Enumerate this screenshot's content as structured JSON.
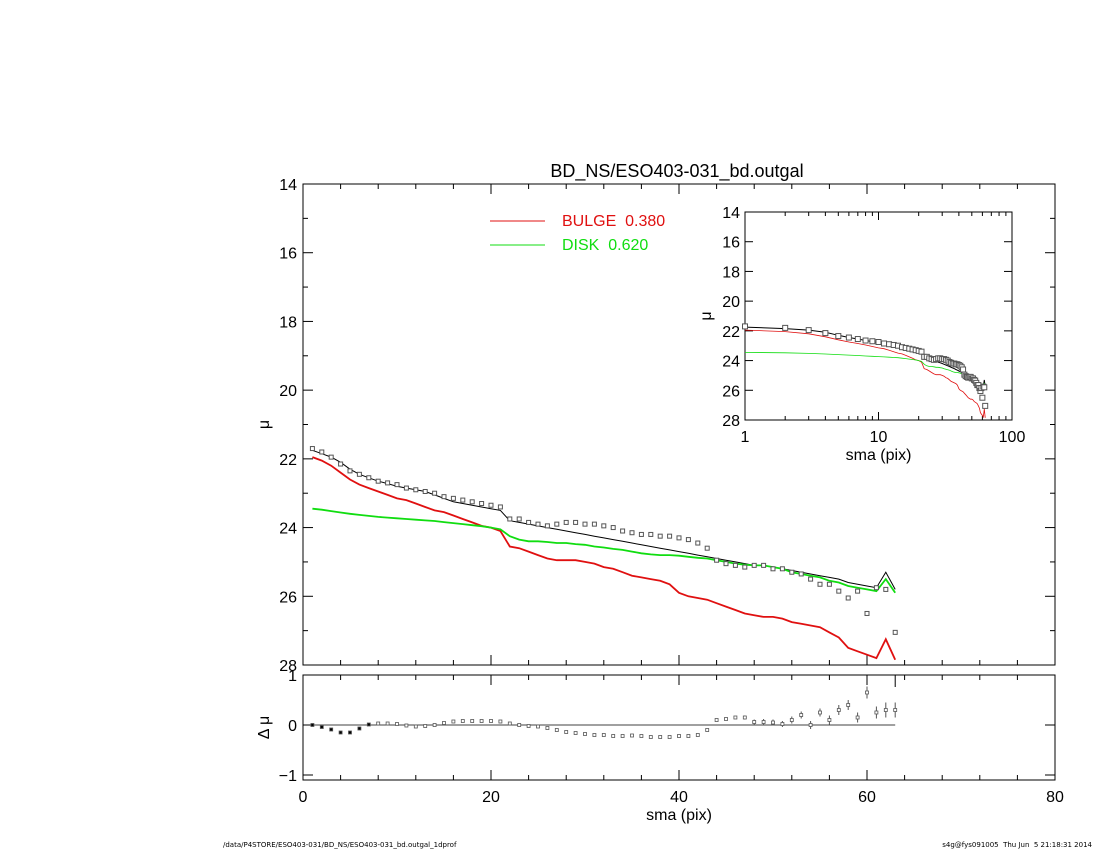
{
  "title": "BD_NS/ESO403-031_bd.outgal",
  "footer": {
    "left": "/data/P4STORE/ESO403-031/BD_NS/ESO403-031_bd.outgal_1dprof",
    "right": "s4g@fys091005  Thu Jun  5 21:18:31 2014"
  },
  "colors": {
    "bulge": "#e01010",
    "disk": "#10dd10",
    "model": "#000000",
    "data": "#555555"
  },
  "chart_data": [
    {
      "id": "main",
      "type": "line",
      "title": "BD_NS/ESO403-031_bd.outgal",
      "xlabel": "",
      "ylabel": "μ",
      "xlim": [
        0,
        80
      ],
      "ylim": [
        28,
        14
      ],
      "yticks": [
        14,
        16,
        18,
        20,
        22,
        24,
        26,
        28
      ],
      "legend": {
        "placement": "top-center",
        "entries": [
          {
            "label": "BULGE  0.380",
            "series": "bulge"
          },
          {
            "label": "DISK  0.620",
            "series": "disk"
          }
        ]
      },
      "series": [
        {
          "key": "bulge",
          "x": [
            1,
            2,
            3,
            4,
            5,
            6,
            7,
            8,
            9,
            10,
            11,
            12,
            13,
            14,
            15,
            16,
            17,
            18,
            19,
            20,
            21,
            22,
            23,
            24,
            25,
            26,
            27,
            28,
            29,
            30,
            31,
            32,
            33,
            34,
            35,
            36,
            37,
            38,
            39,
            40,
            41,
            42,
            43,
            44,
            45,
            46,
            47,
            48,
            49,
            50,
            51,
            52,
            53,
            54,
            55,
            56,
            57,
            58,
            59,
            60,
            61,
            62,
            63
          ],
          "y": [
            21.95,
            22.05,
            22.2,
            22.4,
            22.6,
            22.75,
            22.85,
            22.95,
            23.05,
            23.15,
            23.2,
            23.3,
            23.4,
            23.5,
            23.55,
            23.65,
            23.75,
            23.85,
            23.95,
            24.0,
            24.1,
            24.55,
            24.6,
            24.7,
            24.8,
            24.9,
            24.95,
            24.95,
            24.95,
            25.0,
            25.05,
            25.15,
            25.2,
            25.3,
            25.4,
            25.45,
            25.5,
            25.55,
            25.65,
            25.9,
            26.0,
            26.05,
            26.1,
            26.2,
            26.3,
            26.4,
            26.5,
            26.55,
            26.6,
            26.6,
            26.65,
            26.75,
            26.8,
            26.85,
            26.9,
            27.05,
            27.2,
            27.5,
            27.6,
            27.7,
            27.8,
            27.25,
            27.85
          ]
        },
        {
          "key": "disk",
          "x": [
            1,
            2,
            3,
            4,
            5,
            6,
            7,
            8,
            9,
            10,
            11,
            12,
            13,
            14,
            15,
            16,
            17,
            18,
            19,
            20,
            21,
            22,
            23,
            24,
            25,
            26,
            27,
            28,
            29,
            30,
            31,
            32,
            33,
            34,
            35,
            36,
            37,
            38,
            39,
            40,
            41,
            42,
            43,
            44,
            45,
            46,
            47,
            48,
            49,
            50,
            51,
            52,
            53,
            54,
            55,
            56,
            57,
            58,
            59,
            60,
            61,
            62,
            63
          ],
          "y": [
            23.45,
            23.48,
            23.52,
            23.56,
            23.6,
            23.63,
            23.66,
            23.69,
            23.71,
            23.73,
            23.75,
            23.77,
            23.79,
            23.81,
            23.84,
            23.87,
            23.9,
            23.93,
            23.96,
            24.0,
            24.05,
            24.25,
            24.35,
            24.4,
            24.4,
            24.42,
            24.45,
            24.45,
            24.48,
            24.5,
            24.55,
            24.58,
            24.62,
            24.65,
            24.7,
            24.75,
            24.78,
            24.8,
            24.8,
            24.82,
            24.85,
            24.88,
            24.9,
            24.95,
            25.0,
            25.05,
            25.08,
            25.1,
            25.1,
            25.15,
            25.2,
            25.3,
            25.35,
            25.4,
            25.45,
            25.55,
            25.6,
            25.7,
            25.75,
            25.8,
            25.85,
            25.5,
            25.9
          ]
        },
        {
          "key": "model",
          "x": [
            1,
            2,
            3,
            4,
            5,
            6,
            7,
            8,
            9,
            10,
            11,
            12,
            13,
            14,
            15,
            16,
            17,
            18,
            19,
            20,
            21,
            22,
            23,
            24,
            25,
            26,
            27,
            28,
            29,
            30,
            31,
            32,
            33,
            34,
            35,
            36,
            37,
            38,
            39,
            40,
            41,
            42,
            43,
            44,
            45,
            46,
            47,
            48,
            49,
            50,
            51,
            52,
            53,
            54,
            55,
            56,
            57,
            58,
            59,
            60,
            61,
            62,
            63
          ],
          "y": [
            21.75,
            21.85,
            21.95,
            22.1,
            22.3,
            22.45,
            22.55,
            22.65,
            22.72,
            22.8,
            22.85,
            22.9,
            22.95,
            23.05,
            23.15,
            23.25,
            23.3,
            23.35,
            23.4,
            23.45,
            23.5,
            23.8,
            23.85,
            23.9,
            23.95,
            24.0,
            24.05,
            24.1,
            24.15,
            24.2,
            24.25,
            24.3,
            24.35,
            24.4,
            24.45,
            24.5,
            24.55,
            24.6,
            24.65,
            24.7,
            24.75,
            24.8,
            24.85,
            24.9,
            24.95,
            25.0,
            25.05,
            25.1,
            25.1,
            25.15,
            25.2,
            25.25,
            25.3,
            25.35,
            25.4,
            25.45,
            25.5,
            25.6,
            25.65,
            25.7,
            25.75,
            25.3,
            25.8
          ]
        },
        {
          "key": "data",
          "x": [
            1,
            2,
            3,
            4,
            5,
            6,
            7,
            8,
            9,
            10,
            11,
            12,
            13,
            14,
            15,
            16,
            17,
            18,
            19,
            20,
            21,
            22,
            23,
            24,
            25,
            26,
            27,
            28,
            29,
            30,
            31,
            32,
            33,
            34,
            35,
            36,
            37,
            38,
            39,
            40,
            41,
            42,
            43,
            44,
            45,
            46,
            47,
            48,
            49,
            50,
            51,
            52,
            53,
            54,
            55,
            56,
            57,
            58,
            59,
            60,
            61,
            62,
            63
          ],
          "y": [
            21.7,
            21.8,
            21.95,
            22.15,
            22.35,
            22.45,
            22.55,
            22.65,
            22.7,
            22.75,
            22.85,
            22.9,
            22.95,
            23.0,
            23.1,
            23.15,
            23.2,
            23.25,
            23.3,
            23.35,
            23.4,
            23.75,
            23.75,
            23.85,
            23.9,
            23.95,
            23.9,
            23.85,
            23.85,
            23.9,
            23.9,
            23.95,
            24.0,
            24.1,
            24.15,
            24.2,
            24.2,
            24.25,
            24.25,
            24.3,
            24.35,
            24.45,
            24.6,
            24.95,
            25.05,
            25.1,
            25.15,
            25.1,
            25.1,
            25.2,
            25.2,
            25.3,
            25.35,
            25.5,
            25.65,
            25.65,
            25.85,
            26.05,
            25.85,
            26.5,
            25.75,
            25.8,
            27.05
          ]
        }
      ]
    },
    {
      "id": "residual",
      "type": "scatter",
      "xlabel": "sma (pix)",
      "ylabel": "Δ μ",
      "xlim": [
        0,
        80
      ],
      "ylim": [
        -1.1,
        1.0
      ],
      "xticks": [
        0,
        20,
        40,
        60,
        80
      ],
      "yticks": [
        -1,
        0,
        1
      ],
      "series": [
        {
          "key": "resid",
          "x": [
            1,
            2,
            3,
            4,
            5,
            6,
            7,
            8,
            9,
            10,
            11,
            12,
            13,
            14,
            15,
            16,
            17,
            18,
            19,
            20,
            21,
            22,
            23,
            24,
            25,
            26,
            27,
            28,
            29,
            30,
            31,
            32,
            33,
            34,
            35,
            36,
            37,
            38,
            39,
            40,
            41,
            42,
            43,
            44,
            45,
            46,
            47,
            48,
            49,
            50,
            51,
            52,
            53,
            54,
            55,
            56,
            57,
            58,
            59,
            60,
            61,
            62,
            63
          ],
          "y": [
            0.0,
            -0.04,
            -0.09,
            -0.15,
            -0.15,
            -0.07,
            0.01,
            0.03,
            0.03,
            0.02,
            -0.01,
            -0.03,
            -0.02,
            0.0,
            0.04,
            0.07,
            0.08,
            0.08,
            0.08,
            0.08,
            0.07,
            0.03,
            0.0,
            -0.02,
            -0.03,
            -0.06,
            -0.1,
            -0.14,
            -0.16,
            -0.18,
            -0.2,
            -0.2,
            -0.22,
            -0.22,
            -0.21,
            -0.22,
            -0.24,
            -0.24,
            -0.24,
            -0.22,
            -0.22,
            -0.2,
            -0.1,
            0.1,
            0.12,
            0.15,
            0.15,
            0.06,
            0.06,
            0.05,
            0.02,
            0.1,
            0.2,
            0.0,
            0.25,
            0.1,
            0.3,
            0.4,
            0.15,
            0.65,
            0.25,
            0.3,
            0.3
          ],
          "err": [
            0.01,
            0.01,
            0.01,
            0.01,
            0.01,
            0.01,
            0.01,
            0.01,
            0.01,
            0.01,
            0.01,
            0.01,
            0.01,
            0.01,
            0.01,
            0.01,
            0.01,
            0.01,
            0.01,
            0.01,
            0.01,
            0.01,
            0.01,
            0.01,
            0.01,
            0.01,
            0.01,
            0.01,
            0.01,
            0.01,
            0.01,
            0.01,
            0.01,
            0.01,
            0.01,
            0.01,
            0.01,
            0.01,
            0.01,
            0.01,
            0.01,
            0.01,
            0.02,
            0.03,
            0.03,
            0.03,
            0.04,
            0.05,
            0.06,
            0.06,
            0.06,
            0.07,
            0.07,
            0.08,
            0.08,
            0.09,
            0.1,
            0.1,
            0.1,
            0.12,
            0.12,
            0.15,
            0.15
          ]
        }
      ]
    },
    {
      "id": "inset",
      "type": "line",
      "xscale": "log",
      "xlabel": "sma (pix)",
      "ylabel": "μ",
      "xlim": [
        1,
        100
      ],
      "ylim": [
        28,
        14
      ],
      "xticks": [
        1,
        10,
        100
      ],
      "yticks": [
        14,
        16,
        18,
        20,
        22,
        24,
        26,
        28
      ],
      "series_ref": "main"
    }
  ]
}
